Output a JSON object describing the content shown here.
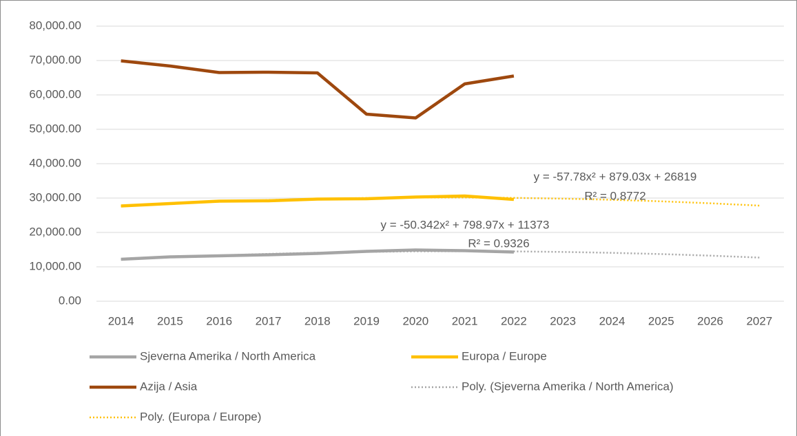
{
  "chart_data": {
    "type": "line",
    "categories": [
      "2014",
      "2015",
      "2016",
      "2017",
      "2018",
      "2019",
      "2020",
      "2021",
      "2022",
      "2023",
      "2024",
      "2025",
      "2026",
      "2027"
    ],
    "ylim": [
      0,
      80000
    ],
    "yticks": [
      {
        "value": 0,
        "label": "0.00"
      },
      {
        "value": 10000,
        "label": "10,000.00"
      },
      {
        "value": 20000,
        "label": "20,000.00"
      },
      {
        "value": 30000,
        "label": "30,000.00"
      },
      {
        "value": 40000,
        "label": "40,000.00"
      },
      {
        "value": 50000,
        "label": "50,000.00"
      },
      {
        "value": 60000,
        "label": "60,000.00"
      },
      {
        "value": 70000,
        "label": "70,000.00"
      },
      {
        "value": 80000,
        "label": "80,000.00"
      }
    ],
    "grid": true,
    "legend": "bottom",
    "series": [
      {
        "name": "Sjeverna Amerika / North America",
        "color": "#a5a5a5",
        "style": "solid",
        "values": [
          12200,
          12900,
          13200,
          13500,
          13900,
          14500,
          14900,
          14700,
          14300,
          null,
          null,
          null,
          null,
          null
        ]
      },
      {
        "name": "Europa / Europe",
        "color": "#ffc000",
        "style": "solid",
        "values": [
          27700,
          28400,
          29100,
          29200,
          29700,
          29800,
          30300,
          30600,
          29600,
          null,
          null,
          null,
          null,
          null
        ]
      },
      {
        "name": "Azija / Asia",
        "color": "#9e480e",
        "style": "solid",
        "values": [
          69900,
          68400,
          66500,
          66600,
          66400,
          54400,
          53300,
          63200,
          65500,
          null,
          null,
          null,
          null,
          null
        ]
      },
      {
        "name": "Poly. (Sjeverna Amerika / North America)",
        "color": "#a5a5a5",
        "style": "dotted",
        "values": [
          12122,
          12770,
          13317,
          13763,
          14109,
          14355,
          14499,
          14543,
          14486,
          14329,
          14070,
          13711,
          13252,
          12692
        ]
      },
      {
        "name": "Poly. (Europa / Europe)",
        "color": "#ffc000",
        "style": "dotted",
        "values": [
          27640,
          28346,
          28936,
          29411,
          29770,
          30013,
          30141,
          30153,
          30050,
          29831,
          29497,
          29047,
          28482,
          27801
        ]
      }
    ],
    "annotations": [
      {
        "text": "y = -57.78x² + 879.03x + 26819",
        "x": "2022",
        "y": 30000
      },
      {
        "text": "R² = 0.8772",
        "x": "2022",
        "y": 30000
      },
      {
        "text": "y = -50.342x² + 798.97x + 11373",
        "x": "2022",
        "y": 14500
      },
      {
        "text": "R² = 0.9326",
        "x": "2022",
        "y": 14500
      }
    ]
  }
}
